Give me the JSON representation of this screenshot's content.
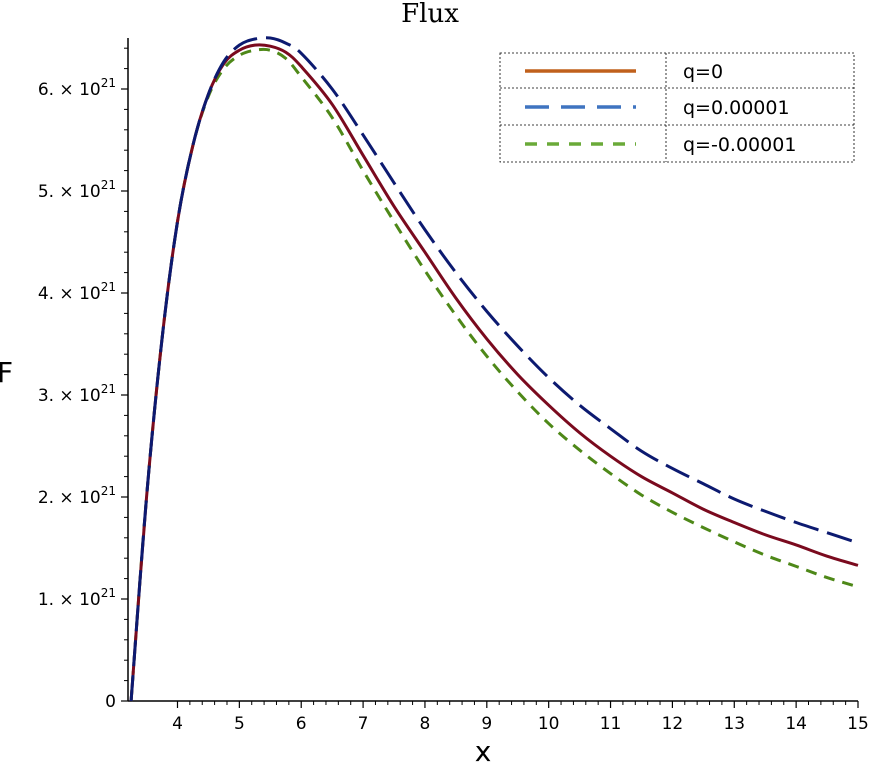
{
  "chart_data": {
    "type": "line",
    "title": "Flux",
    "xlabel": "x",
    "ylabel": "F",
    "xlim": [
      3.2,
      15
    ],
    "ylim": [
      0,
      6.5e+21
    ],
    "x_ticks": [
      4,
      5,
      6,
      7,
      8,
      9,
      10,
      11,
      12,
      13,
      14,
      15
    ],
    "y_ticks": [
      {
        "value": 0,
        "mantissa": "0",
        "exp": ""
      },
      {
        "value": 1e+21,
        "mantissa": "1. × 10",
        "exp": "21"
      },
      {
        "value": 2e+21,
        "mantissa": "2. × 10",
        "exp": "21"
      },
      {
        "value": 3e+21,
        "mantissa": "3. × 10",
        "exp": "21"
      },
      {
        "value": 4e+21,
        "mantissa": "4. × 10",
        "exp": "21"
      },
      {
        "value": 5e+21,
        "mantissa": "5. × 10",
        "exp": "21"
      },
      {
        "value": 6e+21,
        "mantissa": "6. × 10",
        "exp": "21"
      }
    ],
    "legend_position": "top-right",
    "series": [
      {
        "name": "q=0",
        "line_color": "#7a0a1e",
        "legend_color": "#c0601c",
        "dash": "solid",
        "x": [
          3.25,
          3.5,
          3.75,
          4.0,
          4.25,
          4.5,
          4.75,
          5.0,
          5.25,
          5.5,
          5.75,
          6.0,
          6.5,
          7.0,
          7.5,
          8.0,
          8.5,
          9.0,
          9.5,
          10.0,
          10.5,
          11.0,
          11.5,
          12.0,
          12.5,
          13.0,
          13.5,
          14.0,
          14.5,
          15.0
        ],
        "y": [
          0.0,
          2e+21,
          3.55e+21,
          4.7e+21,
          5.45e+21,
          5.95e+21,
          6.25e+21,
          6.38e+21,
          6.43e+21,
          6.42e+21,
          6.36e+21,
          6.22e+21,
          5.85e+21,
          5.35e+21,
          4.85e+21,
          4.4e+21,
          3.95e+21,
          3.55e+21,
          3.2e+21,
          2.9e+21,
          2.63e+21,
          2.4e+21,
          2.2e+21,
          2.04e+21,
          1.88e+21,
          1.75e+21,
          1.63e+21,
          1.53e+21,
          1.42e+21,
          1.33e+21
        ]
      },
      {
        "name": "q=0.00001",
        "line_color": "#0c1a70",
        "legend_color": "#3f74c0",
        "dash": "long",
        "x": [
          3.25,
          3.5,
          3.75,
          4.0,
          4.25,
          4.5,
          4.75,
          5.0,
          5.25,
          5.5,
          5.75,
          6.0,
          6.5,
          7.0,
          7.5,
          8.0,
          8.5,
          9.0,
          9.5,
          10.0,
          10.5,
          11.0,
          11.5,
          12.0,
          12.5,
          13.0,
          13.5,
          14.0,
          14.5,
          15.0
        ],
        "y": [
          0.0,
          2e+21,
          3.55e+21,
          4.7e+21,
          5.45e+21,
          5.95e+21,
          6.27e+21,
          6.43e+21,
          6.49e+21,
          6.5e+21,
          6.45e+21,
          6.35e+21,
          6e+21,
          5.55e+21,
          5.08e+21,
          4.62e+21,
          4.2e+21,
          3.82e+21,
          3.48e+21,
          3.17e+21,
          2.9e+21,
          2.67e+21,
          2.45e+21,
          2.28e+21,
          2.13e+21,
          1.98e+21,
          1.86e+21,
          1.75e+21,
          1.65e+21,
          1.55e+21
        ]
      },
      {
        "name": "q=-0.00001",
        "line_color": "#4e8818",
        "legend_color": "#6aaa38",
        "dash": "short",
        "x": [
          3.25,
          3.5,
          3.75,
          4.0,
          4.25,
          4.5,
          4.75,
          5.0,
          5.25,
          5.5,
          5.75,
          6.0,
          6.5,
          7.0,
          7.5,
          8.0,
          8.5,
          9.0,
          9.5,
          10.0,
          10.5,
          11.0,
          11.5,
          12.0,
          12.5,
          13.0,
          13.5,
          14.0,
          14.5,
          15.0
        ],
        "y": [
          0.0,
          2e+21,
          3.55e+21,
          4.7e+21,
          5.45e+21,
          5.93e+21,
          6.2e+21,
          6.33e+21,
          6.38e+21,
          6.38e+21,
          6.3e+21,
          6.12e+21,
          5.72e+21,
          5.2e+21,
          4.7e+21,
          4.22e+21,
          3.78e+21,
          3.38e+21,
          3.03e+21,
          2.72e+21,
          2.46e+21,
          2.23e+21,
          2.02e+21,
          1.85e+21,
          1.7e+21,
          1.56e+21,
          1.43e+21,
          1.32e+21,
          1.21e+21,
          1.12e+21
        ]
      }
    ]
  }
}
